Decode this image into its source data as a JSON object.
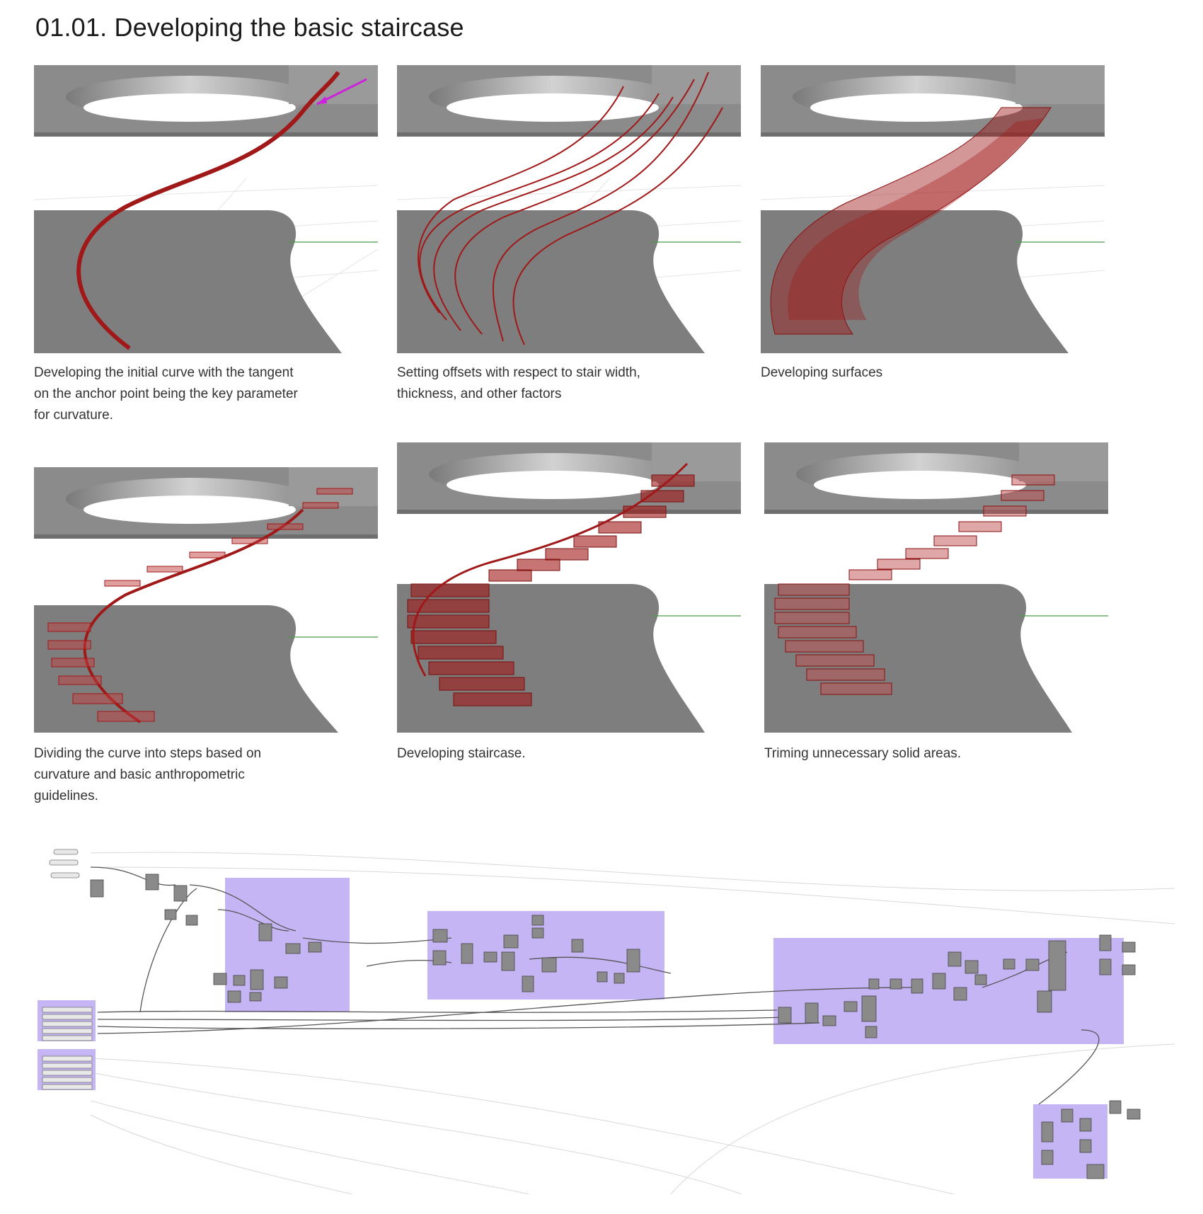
{
  "page": {
    "title": "01.01. Developing the basic staircase"
  },
  "steps": [
    {
      "id": "initial-curve",
      "caption": "Developing the initial curve with the tangent on the anchor point being the key parameter for curvature."
    },
    {
      "id": "offsets",
      "caption": "Setting offsets with respect to stair width, thickness, and other factors"
    },
    {
      "id": "surfaces",
      "caption": "Developing surfaces"
    },
    {
      "id": "divide",
      "caption": "Dividing the curve into steps based on curvature and basic anthropometric guidelines."
    },
    {
      "id": "staircase",
      "caption": "Developing staircase."
    },
    {
      "id": "trim",
      "caption": "Triming unnecessary solid areas."
    }
  ],
  "colors": {
    "model_dark": "#7e7e7e",
    "model_light": "#c9c9c9",
    "curve_red": "#a01818",
    "tangent_magenta": "#cc22dd",
    "group_purple": "#c6b5f5",
    "node_grey": "#8a8a8a"
  },
  "definition": {
    "groups": [
      {
        "id": "reference-geometry",
        "label": ""
      },
      {
        "id": "initial-curve",
        "label": ""
      },
      {
        "id": "generating-steps",
        "label": ""
      },
      {
        "id": "splitting-surfaces",
        "label": ""
      },
      {
        "id": "staircase-parameters",
        "label": ""
      },
      {
        "id": "detailing-parameters",
        "label": ""
      }
    ]
  }
}
